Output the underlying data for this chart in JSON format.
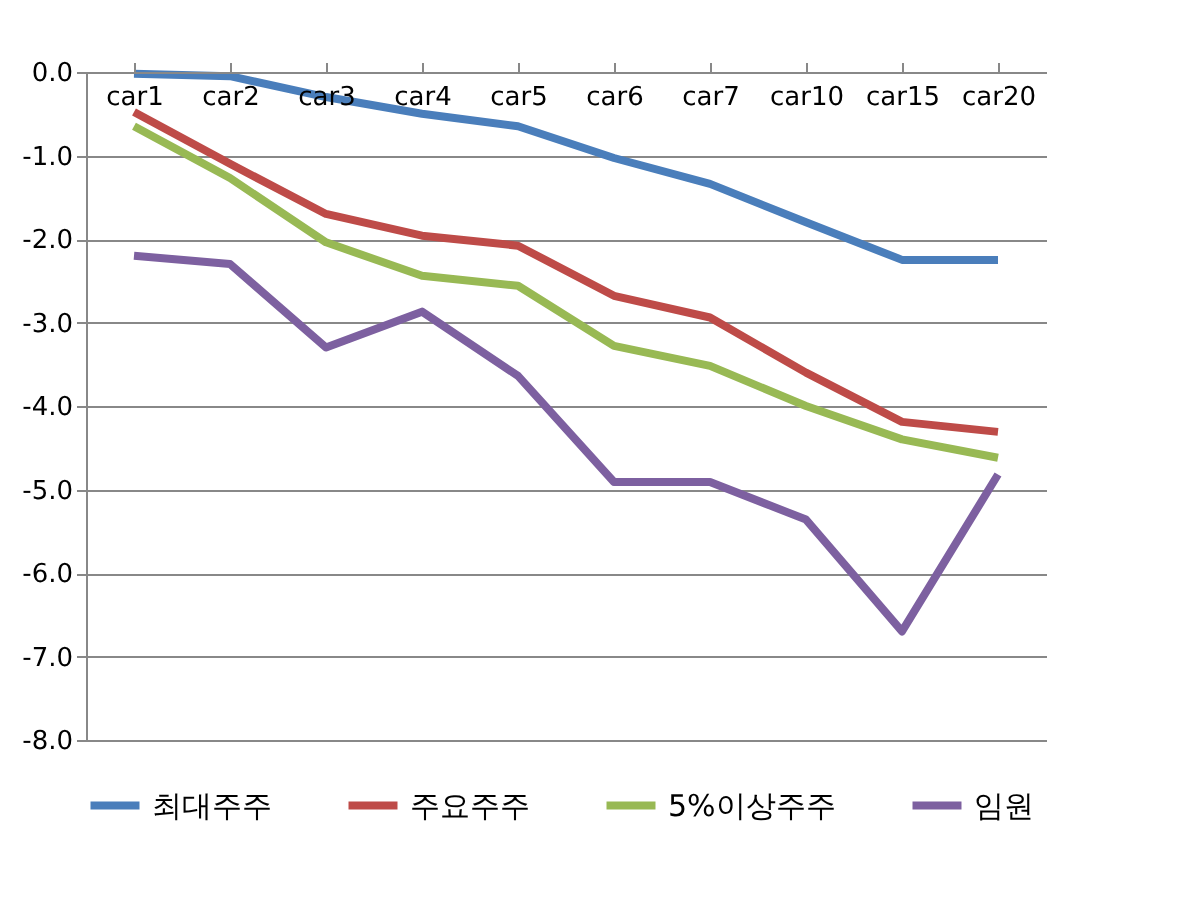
{
  "chart_data": {
    "type": "line",
    "categories": [
      "car1",
      "car2",
      "car3",
      "car4",
      "car5",
      "car6",
      "car7",
      "car10",
      "car15",
      "car20"
    ],
    "series": [
      {
        "name": "최대주주",
        "color": "#4a7ebb",
        "values": [
          -0.02,
          -0.05,
          -0.3,
          -0.5,
          -0.65,
          -1.03,
          -1.34,
          -1.8,
          -2.25,
          -2.25
        ]
      },
      {
        "name": "주요주주",
        "color": "#be4b48",
        "values": [
          -0.48,
          -1.1,
          -1.7,
          -1.96,
          -2.08,
          -2.68,
          -2.94,
          -3.6,
          -4.19,
          -4.31
        ]
      },
      {
        "name": "5%이상주주",
        "color": "#98b954",
        "values": [
          -0.65,
          -1.27,
          -2.04,
          -2.44,
          -2.56,
          -3.28,
          -3.52,
          -4.0,
          -4.4,
          -4.62
        ]
      },
      {
        "name": "임원",
        "color": "#7d60a0",
        "values": [
          -2.2,
          -2.3,
          -3.3,
          -2.87,
          -3.64,
          -4.91,
          -4.91,
          -5.36,
          -6.7,
          -4.82
        ]
      }
    ],
    "ylim": [
      -8,
      0
    ],
    "yticks": [
      {
        "value": 0,
        "label": "0.0"
      },
      {
        "value": -1,
        "label": "-1.0"
      },
      {
        "value": -2,
        "label": "-2.0"
      },
      {
        "value": -3,
        "label": "-3.0"
      },
      {
        "value": -4,
        "label": "-4.0"
      },
      {
        "value": -5,
        "label": "-5.0"
      },
      {
        "value": -6,
        "label": "-6.0"
      },
      {
        "value": -7,
        "label": "-7.0"
      },
      {
        "value": -8,
        "label": "-8.0"
      }
    ],
    "grid": "y",
    "legend": "bottom",
    "marker": "none",
    "line_style": "solid"
  }
}
